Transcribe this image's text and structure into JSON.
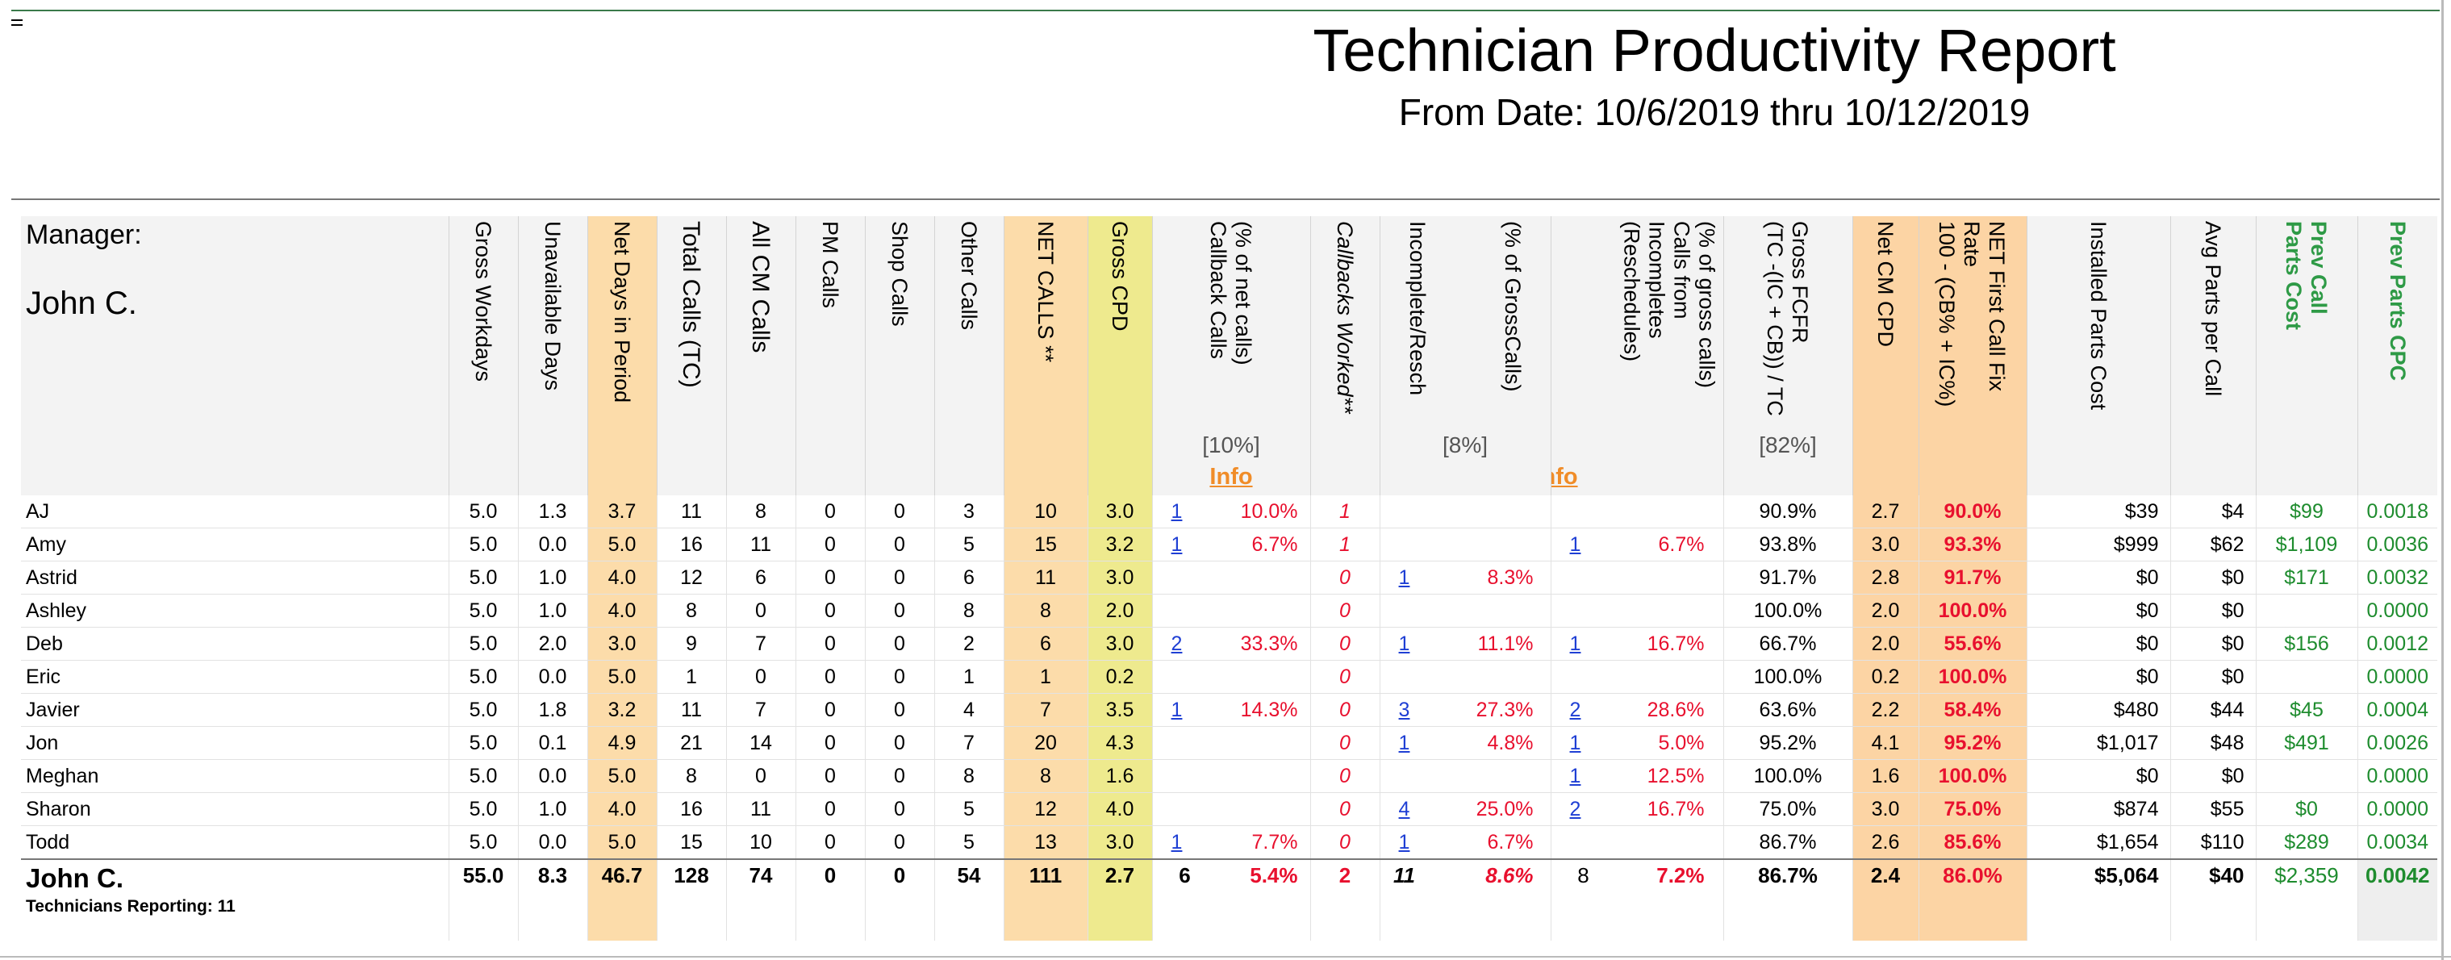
{
  "title": "Technician Productivity Report",
  "subtitle": "From Date: 10/6/2019 thru 10/12/2019",
  "manager_label": "Manager:",
  "manager_name": "John C.",
  "columns": {
    "gross_workdays": "Gross Workdays",
    "unavailable_days": "Unavailable Days",
    "net_days": "Net Days in Period",
    "total_calls": "Total Calls (TC)",
    "all_cm_calls": "All CM Calls",
    "pm_calls": "PM Calls",
    "shop_calls": "Shop Calls",
    "other_calls": "Other Calls",
    "net_calls": "NET CALLS **",
    "gross_cpd": "Gross CPD",
    "callback_calls_1": "(% of net calls)",
    "callback_calls_2": "Callback Calls",
    "callback_pct_target": "[10%]",
    "callback_info": "Info",
    "callbacks_worked": "Callbacks Worked**",
    "incomplete_resch": "Incomplete/Resch",
    "incomplete_pct_1": "(% of GrossCalls)",
    "incomplete_pct_target": "[8%]",
    "incomplete_info": "Info",
    "calls_from_inc_1": "(% of gross calls)",
    "calls_from_inc_2": "Calls from",
    "calls_from_inc_3": "Incompletes",
    "calls_from_inc_4": "(Reschedules)",
    "gross_fcfr_1": "Gross FCFR",
    "gross_fcfr_2": "(TC -(IC + CB)) / TC",
    "gross_fcfr_target": "[82%]",
    "net_cm_cpd": "Net CM CPD",
    "net_fcfr_1": "NET First Call Fix",
    "net_fcfr_2": "Rate",
    "net_fcfr_3": "100 - (CB% + IC%)",
    "installed_parts_cost": "Installed Parts Cost",
    "avg_parts_per_call": "Avg Parts per Call",
    "prev_call_parts_cost_1": "Prev Call",
    "prev_call_parts_cost_2": "Parts Cost",
    "prev_parts_cpc": "Prev Parts CPC"
  },
  "rows": [
    {
      "name": "AJ",
      "gw": "5.0",
      "ud": "1.3",
      "nd": "3.7",
      "tc": "11",
      "cm": "8",
      "pm": "0",
      "shop": "0",
      "other": "3",
      "net": "10",
      "gcpd": "3.0",
      "cb": "1",
      "cbp": "10.0%",
      "cbw": "1",
      "inc": "",
      "incp": "",
      "cfi": "",
      "cfip": "",
      "gfcfr": "90.9%",
      "ncpd": "2.7",
      "nfcfr": "90.0%",
      "ipc": "$39",
      "apc": "$4",
      "pcpc": "$99",
      "ppcpc": "0.0018"
    },
    {
      "name": "Amy",
      "gw": "5.0",
      "ud": "0.0",
      "nd": "5.0",
      "tc": "16",
      "cm": "11",
      "pm": "0",
      "shop": "0",
      "other": "5",
      "net": "15",
      "gcpd": "3.2",
      "cb": "1",
      "cbp": "6.7%",
      "cbw": "1",
      "inc": "",
      "incp": "",
      "cfi": "1",
      "cfip": "6.7%",
      "gfcfr": "93.8%",
      "ncpd": "3.0",
      "nfcfr": "93.3%",
      "ipc": "$999",
      "apc": "$62",
      "pcpc": "$1,109",
      "ppcpc": "0.0036"
    },
    {
      "name": "Astrid",
      "gw": "5.0",
      "ud": "1.0",
      "nd": "4.0",
      "tc": "12",
      "cm": "6",
      "pm": "0",
      "shop": "0",
      "other": "6",
      "net": "11",
      "gcpd": "3.0",
      "cb": "",
      "cbp": "",
      "cbw": "0",
      "inc": "1",
      "incp": "8.3%",
      "cfi": "",
      "cfip": "",
      "gfcfr": "91.7%",
      "ncpd": "2.8",
      "nfcfr": "91.7%",
      "ipc": "$0",
      "apc": "$0",
      "pcpc": "$171",
      "ppcpc": "0.0032"
    },
    {
      "name": "Ashley",
      "gw": "5.0",
      "ud": "1.0",
      "nd": "4.0",
      "tc": "8",
      "cm": "0",
      "pm": "0",
      "shop": "0",
      "other": "8",
      "net": "8",
      "gcpd": "2.0",
      "cb": "",
      "cbp": "",
      "cbw": "0",
      "inc": "",
      "incp": "",
      "cfi": "",
      "cfip": "",
      "gfcfr": "100.0%",
      "ncpd": "2.0",
      "nfcfr": "100.0%",
      "ipc": "$0",
      "apc": "$0",
      "pcpc": "",
      "ppcpc": "0.0000"
    },
    {
      "name": "Deb",
      "gw": "5.0",
      "ud": "2.0",
      "nd": "3.0",
      "tc": "9",
      "cm": "7",
      "pm": "0",
      "shop": "0",
      "other": "2",
      "net": "6",
      "gcpd": "3.0",
      "cb": "2",
      "cbp": "33.3%",
      "cbw": "0",
      "inc": "1",
      "incp": "11.1%",
      "cfi": "1",
      "cfip": "16.7%",
      "gfcfr": "66.7%",
      "ncpd": "2.0",
      "nfcfr": "55.6%",
      "ipc": "$0",
      "apc": "$0",
      "pcpc": "$156",
      "ppcpc": "0.0012"
    },
    {
      "name": "Eric",
      "gw": "5.0",
      "ud": "0.0",
      "nd": "5.0",
      "tc": "1",
      "cm": "0",
      "pm": "0",
      "shop": "0",
      "other": "1",
      "net": "1",
      "gcpd": "0.2",
      "cb": "",
      "cbp": "",
      "cbw": "0",
      "inc": "",
      "incp": "",
      "cfi": "",
      "cfip": "",
      "gfcfr": "100.0%",
      "ncpd": "0.2",
      "nfcfr": "100.0%",
      "ipc": "$0",
      "apc": "$0",
      "pcpc": "",
      "ppcpc": "0.0000"
    },
    {
      "name": "Javier",
      "gw": "5.0",
      "ud": "1.8",
      "nd": "3.2",
      "tc": "11",
      "cm": "7",
      "pm": "0",
      "shop": "0",
      "other": "4",
      "net": "7",
      "gcpd": "3.5",
      "cb": "1",
      "cbp": "14.3%",
      "cbw": "0",
      "inc": "3",
      "incp": "27.3%",
      "cfi": "2",
      "cfip": "28.6%",
      "gfcfr": "63.6%",
      "ncpd": "2.2",
      "nfcfr": "58.4%",
      "ipc": "$480",
      "apc": "$44",
      "pcpc": "$45",
      "ppcpc": "0.0004"
    },
    {
      "name": "Jon",
      "gw": "5.0",
      "ud": "0.1",
      "nd": "4.9",
      "tc": "21",
      "cm": "14",
      "pm": "0",
      "shop": "0",
      "other": "7",
      "net": "20",
      "gcpd": "4.3",
      "cb": "",
      "cbp": "",
      "cbw": "0",
      "inc": "1",
      "incp": "4.8%",
      "cfi": "1",
      "cfip": "5.0%",
      "gfcfr": "95.2%",
      "ncpd": "4.1",
      "nfcfr": "95.2%",
      "ipc": "$1,017",
      "apc": "$48",
      "pcpc": "$491",
      "ppcpc": "0.0026"
    },
    {
      "name": "Meghan",
      "gw": "5.0",
      "ud": "0.0",
      "nd": "5.0",
      "tc": "8",
      "cm": "0",
      "pm": "0",
      "shop": "0",
      "other": "8",
      "net": "8",
      "gcpd": "1.6",
      "cb": "",
      "cbp": "",
      "cbw": "0",
      "inc": "",
      "incp": "",
      "cfi": "1",
      "cfip": "12.5%",
      "gfcfr": "100.0%",
      "ncpd": "1.6",
      "nfcfr": "100.0%",
      "ipc": "$0",
      "apc": "$0",
      "pcpc": "",
      "ppcpc": "0.0000"
    },
    {
      "name": "Sharon",
      "gw": "5.0",
      "ud": "1.0",
      "nd": "4.0",
      "tc": "16",
      "cm": "11",
      "pm": "0",
      "shop": "0",
      "other": "5",
      "net": "12",
      "gcpd": "4.0",
      "cb": "",
      "cbp": "",
      "cbw": "0",
      "inc": "4",
      "incp": "25.0%",
      "cfi": "2",
      "cfip": "16.7%",
      "gfcfr": "75.0%",
      "ncpd": "3.0",
      "nfcfr": "75.0%",
      "ipc": "$874",
      "apc": "$55",
      "pcpc": "$0",
      "ppcpc": "0.0000"
    },
    {
      "name": "Todd",
      "gw": "5.0",
      "ud": "0.0",
      "nd": "5.0",
      "tc": "15",
      "cm": "10",
      "pm": "0",
      "shop": "0",
      "other": "5",
      "net": "13",
      "gcpd": "3.0",
      "cb": "1",
      "cbp": "7.7%",
      "cbw": "0",
      "inc": "1",
      "incp": "6.7%",
      "cfi": "",
      "cfip": "",
      "gfcfr": "86.7%",
      "ncpd": "2.6",
      "nfcfr": "85.6%",
      "ipc": "$1,654",
      "apc": "$110",
      "pcpc": "$289",
      "ppcpc": "0.0034"
    }
  ],
  "total": {
    "name": "John C.",
    "sub": "Technicians Reporting: 11",
    "gw": "55.0",
    "ud": "8.3",
    "nd": "46.7",
    "tc": "128",
    "cm": "74",
    "pm": "0",
    "shop": "0",
    "other": "54",
    "net": "111",
    "gcpd": "2.7",
    "cb": "6",
    "cbp": "5.4%",
    "cbw": "2",
    "inc": "11",
    "incp": "8.6%",
    "cfi": "8",
    "cfip": "7.2%",
    "gfcfr": "86.7%",
    "ncpd": "2.4",
    "nfcfr": "86.0%",
    "ipc": "$5,064",
    "apc": "$40",
    "pcpc": "$2,359",
    "ppcpc": "0.0042"
  },
  "colors": {
    "net_days_bg": "#fcdcaa",
    "gross_cpd_bg": "#eeea8e",
    "red": "#e8102e",
    "link": "#1f3fd4",
    "green": "#1e8c2e",
    "info": "#f08c28"
  }
}
